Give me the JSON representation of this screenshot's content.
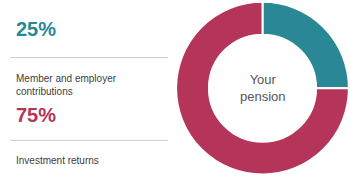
{
  "chart_data": {
    "type": "pie",
    "categories": [
      "Member and employer\ncontributions",
      "Investment returns"
    ],
    "values": [
      25,
      75
    ],
    "value_labels": [
      "25%",
      "75%"
    ],
    "colors": [
      "#2a8896",
      "#b5345a"
    ],
    "annotations": [
      "Your\npension"
    ]
  }
}
